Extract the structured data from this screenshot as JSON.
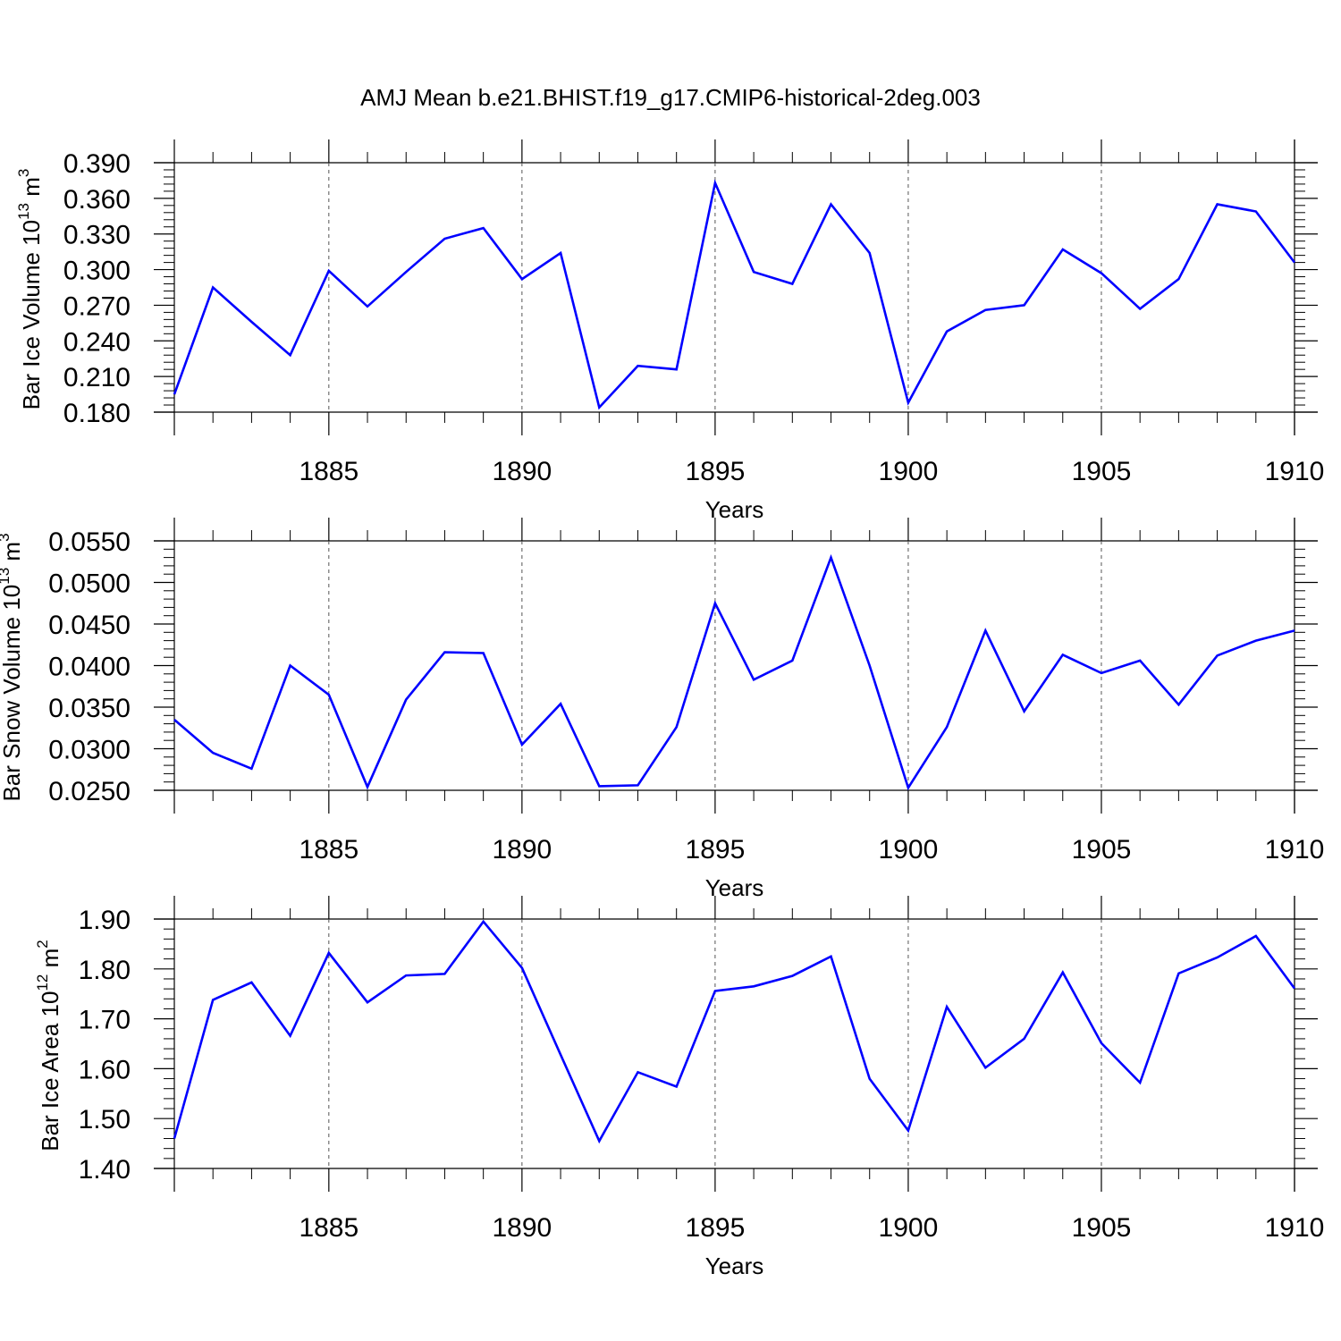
{
  "title": "AMJ Mean b.e21.BHIST.f19_g17.CMIP6-historical-2deg.003",
  "colors": {
    "line": "#0000ff",
    "frame": "#000000"
  },
  "chart_data": [
    {
      "type": "line",
      "ylabel_main": "Bar Ice Volume 10",
      "ylabel_exp": "13",
      "ylabel_unit": " m",
      "ylabel_unit_exp": "3",
      "xlabel": "Years",
      "xlim": [
        1881,
        1910
      ],
      "ylim": [
        0.18,
        0.39
      ],
      "yticks": [
        "0.180",
        "0.210",
        "0.240",
        "0.270",
        "0.300",
        "0.330",
        "0.360",
        "0.390"
      ],
      "xticks": [
        "1885",
        "1890",
        "1895",
        "1900",
        "1905",
        "1910"
      ],
      "grid": "vertical dashed at labeled years",
      "x": [
        1881,
        1882,
        1883,
        1884,
        1885,
        1886,
        1887,
        1888,
        1889,
        1890,
        1891,
        1892,
        1893,
        1894,
        1895,
        1896,
        1897,
        1898,
        1899,
        1900,
        1901,
        1902,
        1903,
        1904,
        1905,
        1906,
        1907,
        1908,
        1909,
        1910
      ],
      "values": [
        0.195,
        0.285,
        0.256,
        0.228,
        0.299,
        0.269,
        0.298,
        0.326,
        0.335,
        0.292,
        0.314,
        0.184,
        0.219,
        0.216,
        0.373,
        0.298,
        0.288,
        0.355,
        0.314,
        0.188,
        0.248,
        0.266,
        0.27,
        0.317,
        0.297,
        0.267,
        0.292,
        0.355,
        0.349,
        0.306
      ]
    },
    {
      "type": "line",
      "ylabel_main": "Bar Snow Volume 10",
      "ylabel_exp": "13",
      "ylabel_unit": " m",
      "ylabel_unit_exp": "3",
      "xlabel": "Years",
      "xlim": [
        1881,
        1910
      ],
      "ylim": [
        0.025,
        0.055
      ],
      "yticks": [
        "0.0250",
        "0.0300",
        "0.0350",
        "0.0400",
        "0.0450",
        "0.0500",
        "0.0550"
      ],
      "xticks": [
        "1885",
        "1890",
        "1895",
        "1900",
        "1905",
        "1910"
      ],
      "grid": "vertical dashed at labeled years",
      "x": [
        1881,
        1882,
        1883,
        1884,
        1885,
        1886,
        1887,
        1888,
        1889,
        1890,
        1891,
        1892,
        1893,
        1894,
        1895,
        1896,
        1897,
        1898,
        1899,
        1900,
        1901,
        1902,
        1903,
        1904,
        1905,
        1906,
        1907,
        1908,
        1909,
        1910
      ],
      "values": [
        0.0335,
        0.0295,
        0.0276,
        0.04,
        0.0365,
        0.0254,
        0.0359,
        0.0416,
        0.0415,
        0.0305,
        0.0354,
        0.0255,
        0.0256,
        0.0326,
        0.0475,
        0.0383,
        0.0406,
        0.053,
        0.04,
        0.0253,
        0.0326,
        0.0442,
        0.0345,
        0.0413,
        0.0391,
        0.0406,
        0.0353,
        0.0412,
        0.043,
        0.0442
      ]
    },
    {
      "type": "line",
      "ylabel_main": "Bar Ice Area 10",
      "ylabel_exp": "12",
      "ylabel_unit": " m",
      "ylabel_unit_exp": "2",
      "xlabel": "Years",
      "xlim": [
        1881,
        1910
      ],
      "ylim": [
        1.4,
        1.9
      ],
      "yticks": [
        "1.40",
        "1.50",
        "1.60",
        "1.70",
        "1.80",
        "1.90"
      ],
      "xticks": [
        "1885",
        "1890",
        "1895",
        "1900",
        "1905",
        "1910"
      ],
      "grid": "vertical dashed at labeled years",
      "x": [
        1881,
        1882,
        1883,
        1884,
        1885,
        1886,
        1887,
        1888,
        1889,
        1890,
        1891,
        1892,
        1893,
        1894,
        1895,
        1896,
        1897,
        1898,
        1899,
        1900,
        1901,
        1902,
        1903,
        1904,
        1905,
        1906,
        1907,
        1908,
        1909,
        1910
      ],
      "values": [
        1.46,
        1.738,
        1.773,
        1.666,
        1.832,
        1.733,
        1.787,
        1.79,
        1.895,
        1.802,
        1.628,
        1.455,
        1.593,
        1.564,
        1.756,
        1.765,
        1.786,
        1.825,
        1.58,
        1.476,
        1.724,
        1.602,
        1.66,
        1.793,
        1.651,
        1.572,
        1.791,
        1.823,
        1.866,
        1.761
      ]
    }
  ]
}
